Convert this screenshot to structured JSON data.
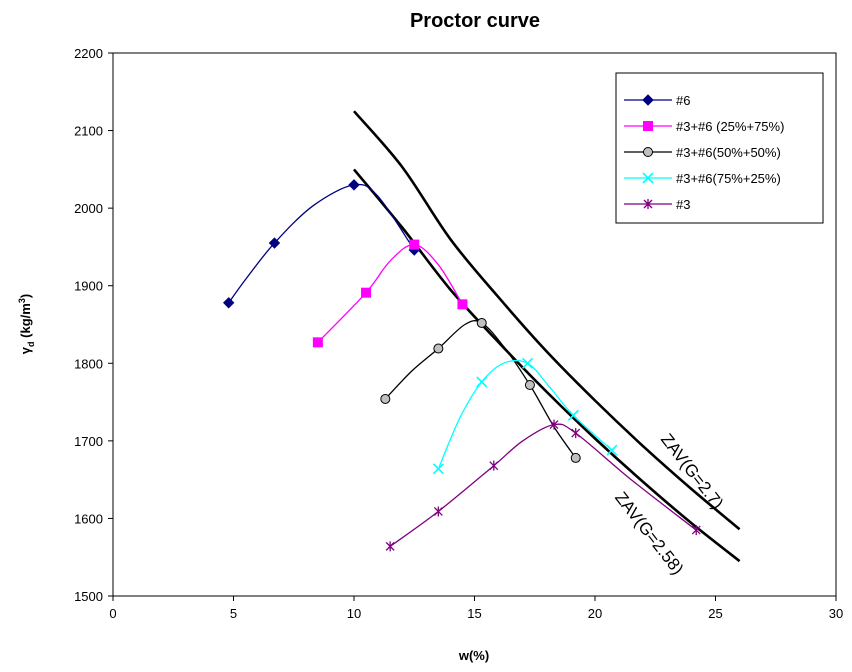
{
  "chart_data": {
    "type": "line",
    "title": "Proctor curve",
    "xlabel": "w(%)",
    "ylabel_main": "γ",
    "ylabel_sub": "d",
    "ylabel_unit_prefix": " (kg/m",
    "ylabel_unit_sup": "3",
    "ylabel_unit_suffix": ")",
    "xlim": [
      0,
      30
    ],
    "ylim": [
      1500,
      2200
    ],
    "xticks": [
      0,
      5,
      10,
      15,
      20,
      25,
      30
    ],
    "yticks": [
      1500,
      1600,
      1700,
      1800,
      1900,
      2000,
      2100,
      2200
    ],
    "grid": false,
    "legend_position": "top-right",
    "series": [
      {
        "name": "#6",
        "color": "#000080",
        "marker": "diamond",
        "points": [
          [
            4.8,
            1878
          ],
          [
            6.7,
            1955
          ],
          [
            10.0,
            2030
          ],
          [
            12.5,
            1946
          ]
        ],
        "curve": [
          [
            4.8,
            1878
          ],
          [
            5.5,
            1908
          ],
          [
            6.7,
            1955
          ],
          [
            8.3,
            2003
          ],
          [
            10.0,
            2030
          ],
          [
            11.0,
            2015
          ],
          [
            12.5,
            1946
          ]
        ]
      },
      {
        "name": "#3+#6 (25%+75%)",
        "color": "#ff00ff",
        "marker": "square",
        "points": [
          [
            8.5,
            1827
          ],
          [
            10.5,
            1891
          ],
          [
            12.5,
            1953
          ],
          [
            14.5,
            1876
          ]
        ],
        "curve": [
          [
            8.5,
            1827
          ],
          [
            10.5,
            1891
          ],
          [
            11.5,
            1932
          ],
          [
            12.5,
            1953
          ],
          [
            13.5,
            1927
          ],
          [
            14.5,
            1876
          ]
        ]
      },
      {
        "name": "#3+#6(50%+50%)",
        "color": "#000000",
        "marker": "circle",
        "points": [
          [
            11.3,
            1754
          ],
          [
            13.5,
            1819
          ],
          [
            15.3,
            1852
          ],
          [
            17.3,
            1772
          ],
          [
            19.2,
            1678
          ]
        ],
        "curve": [
          [
            11.3,
            1754
          ],
          [
            12.4,
            1790
          ],
          [
            13.5,
            1819
          ],
          [
            14.6,
            1850
          ],
          [
            15.3,
            1852
          ],
          [
            16.2,
            1822
          ],
          [
            17.3,
            1772
          ],
          [
            18.3,
            1718
          ],
          [
            19.2,
            1678
          ]
        ]
      },
      {
        "name": "#3+#6(75%+25%)",
        "color": "#00ffff",
        "marker": "x",
        "points": [
          [
            13.5,
            1664
          ],
          [
            15.3,
            1776
          ],
          [
            17.2,
            1800
          ],
          [
            19.1,
            1733
          ],
          [
            20.7,
            1688
          ]
        ],
        "curve": [
          [
            13.5,
            1664
          ],
          [
            14.4,
            1730
          ],
          [
            15.3,
            1776
          ],
          [
            16.2,
            1800
          ],
          [
            17.2,
            1800
          ],
          [
            18.1,
            1770
          ],
          [
            19.1,
            1733
          ],
          [
            20.7,
            1688
          ]
        ]
      },
      {
        "name": "#3",
        "color": "#800080",
        "marker": "star",
        "points": [
          [
            11.5,
            1564
          ],
          [
            13.5,
            1609
          ],
          [
            15.8,
            1668
          ],
          [
            18.3,
            1721
          ],
          [
            19.2,
            1710
          ],
          [
            24.2,
            1585
          ]
        ],
        "curve": [
          [
            11.5,
            1564
          ],
          [
            13.5,
            1609
          ],
          [
            15.8,
            1668
          ],
          [
            17.0,
            1700
          ],
          [
            18.3,
            1721
          ],
          [
            19.2,
            1710
          ],
          [
            21.5,
            1650
          ],
          [
            24.2,
            1585
          ]
        ]
      }
    ],
    "zav_curves": [
      {
        "label": "ZAV(G=2.7)",
        "color": "#000000",
        "points": [
          [
            10,
            2125
          ],
          [
            12,
            2053
          ],
          [
            14,
            1960
          ],
          [
            16,
            1885
          ],
          [
            18,
            1815
          ],
          [
            20,
            1752
          ],
          [
            22,
            1693
          ],
          [
            24,
            1638
          ],
          [
            26,
            1586
          ]
        ]
      },
      {
        "label": "ZAV(G=2.58)",
        "color": "#000000",
        "points": [
          [
            10,
            2050
          ],
          [
            12,
            1975
          ],
          [
            14,
            1895
          ],
          [
            16,
            1827
          ],
          [
            18,
            1763
          ],
          [
            20,
            1703
          ],
          [
            22,
            1647
          ],
          [
            24,
            1594
          ],
          [
            26,
            1545
          ]
        ]
      }
    ]
  }
}
